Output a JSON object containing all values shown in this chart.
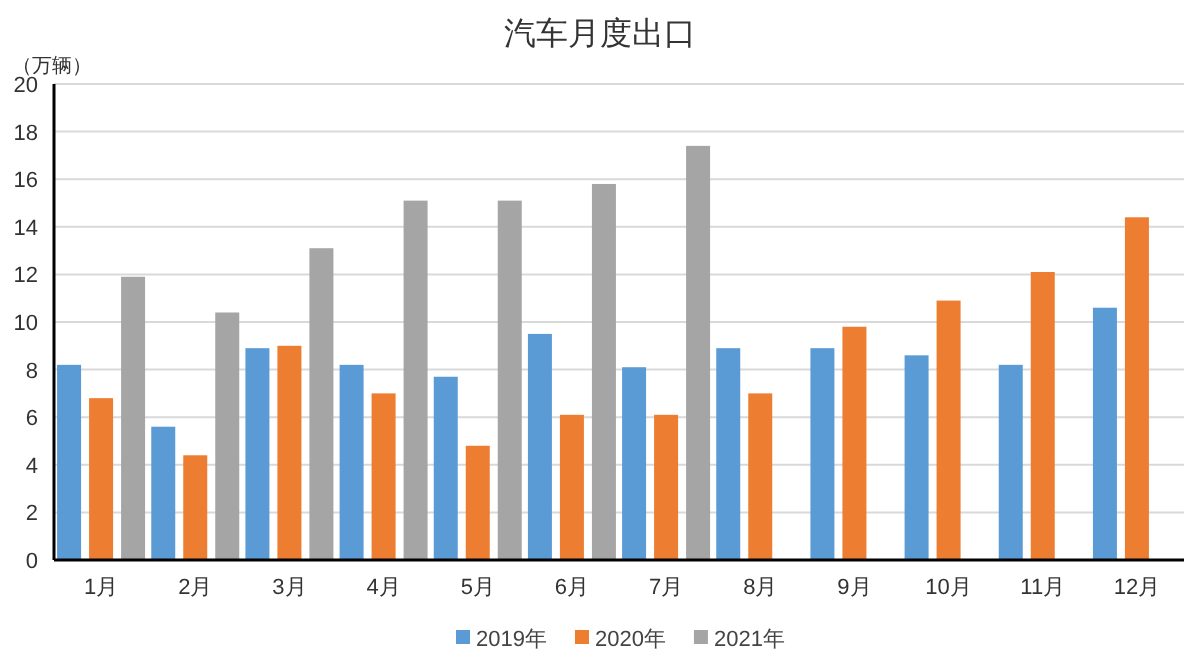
{
  "chart_data": {
    "type": "bar",
    "title": "汽车月度出口",
    "ylabel": "（万辆）",
    "categories": [
      "1月",
      "2月",
      "3月",
      "4月",
      "5月",
      "6月",
      "7月",
      "8月",
      "9月",
      "10月",
      "11月",
      "12月"
    ],
    "series": [
      {
        "name": "2019年",
        "color": "#5b9bd5",
        "values": [
          8.2,
          5.6,
          8.9,
          8.2,
          7.7,
          9.5,
          8.1,
          8.9,
          8.9,
          8.6,
          8.2,
          10.6
        ]
      },
      {
        "name": "2020年",
        "color": "#ed7d31",
        "values": [
          6.8,
          4.4,
          9.0,
          7.0,
          4.8,
          6.1,
          6.1,
          7.0,
          9.8,
          10.9,
          12.1,
          14.4
        ]
      },
      {
        "name": "2021年",
        "color": "#a5a5a5",
        "values": [
          11.9,
          10.4,
          13.1,
          15.1,
          15.1,
          15.8,
          17.4,
          null,
          null,
          null,
          null,
          null
        ]
      }
    ],
    "ylim": [
      0,
      20
    ],
    "yticks": [
      0,
      2,
      4,
      6,
      8,
      10,
      12,
      14,
      16,
      18,
      20
    ],
    "grid": "y",
    "legend": "bottom"
  }
}
